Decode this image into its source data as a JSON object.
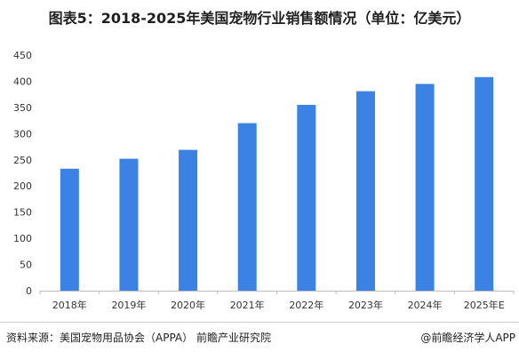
{
  "title": "图表5：2018-2025年美国宠物行业销售额情况（单位：亿美元）",
  "source": "资料来源：美国宠物用品协会（APPA） 前瞻产业研究院",
  "credit": "@前瞻经济学人APP",
  "colors": {
    "bar": "#3b82e4",
    "axis": "#bdbdbd",
    "text": "#333333"
  },
  "chart_data": {
    "type": "bar",
    "categories": [
      "2018年",
      "2019年",
      "2020年",
      "2021年",
      "2022年",
      "2023年",
      "2024年",
      "2025年E"
    ],
    "values": [
      233,
      252,
      269,
      320,
      355,
      381,
      395,
      408
    ],
    "title": "图表5：2018-2025年美国宠物行业销售额情况（单位：亿美元）",
    "xlabel": "",
    "ylabel": "",
    "ylim": [
      0,
      450
    ],
    "yticks": [
      0,
      50,
      100,
      150,
      200,
      250,
      300,
      350,
      400,
      450
    ],
    "grid": false,
    "legend": "none"
  }
}
